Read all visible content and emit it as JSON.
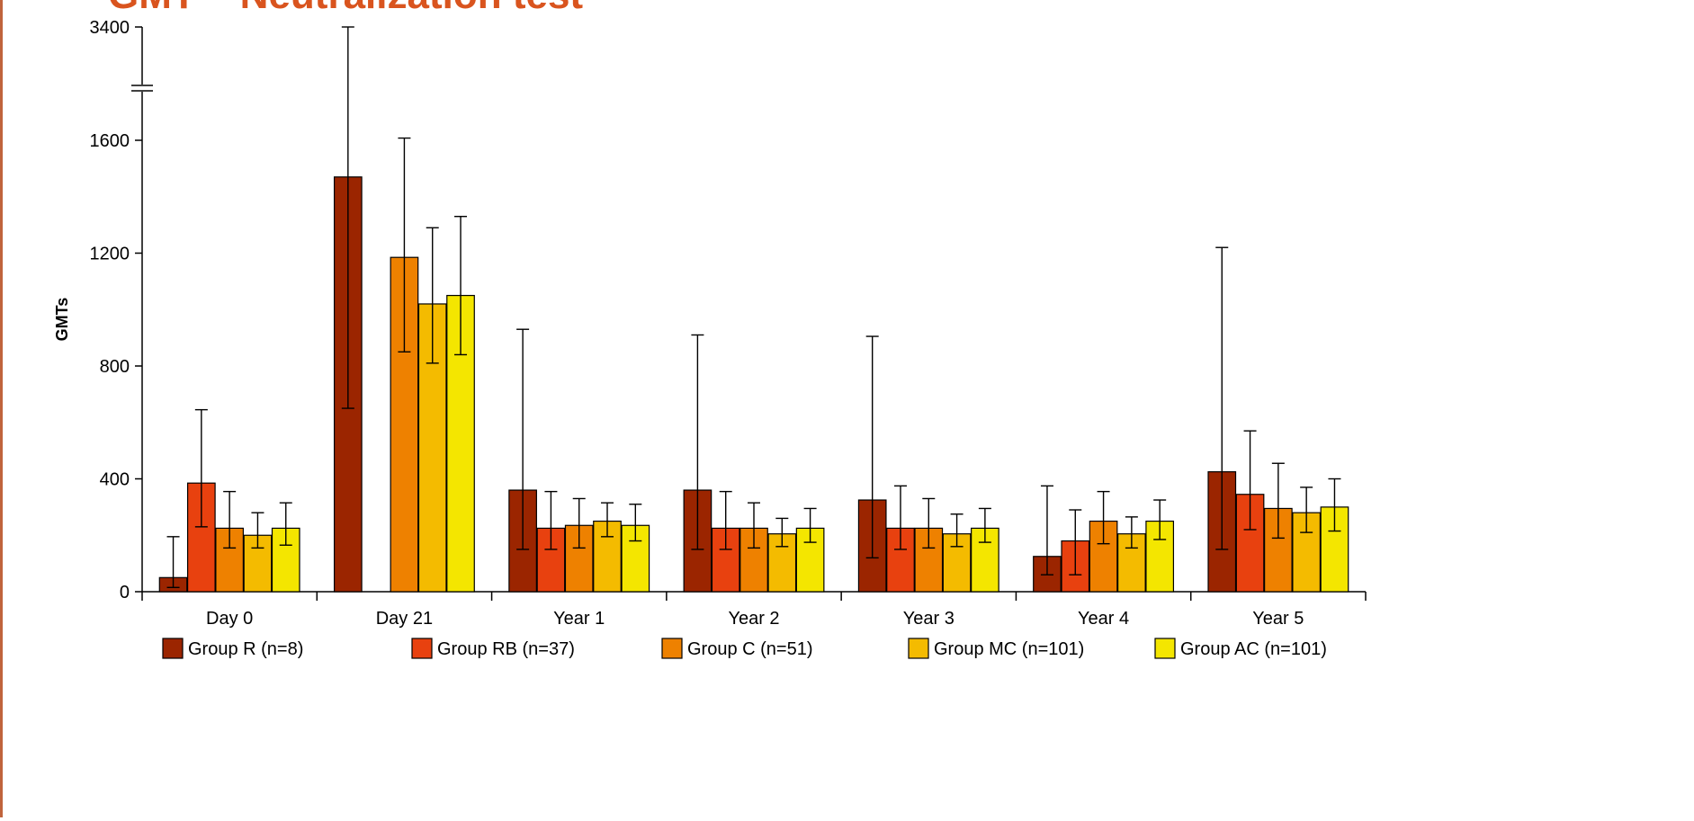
{
  "header": {
    "title_fragment": "GMT – Neutralization test"
  },
  "chart_data": {
    "type": "bar",
    "ylabel": "GMTs",
    "xlabel": "",
    "y_ticks": [
      "0",
      "400",
      "800",
      "1200",
      "1600",
      "3400"
    ],
    "y_axis_break": "between 1600 and 3400",
    "categories": [
      "Day 0",
      "Day 21",
      "Year 1",
      "Year 2",
      "Year 3",
      "Year 4",
      "Year 5"
    ],
    "error_bars": true,
    "legend_position": "bottom",
    "series": [
      {
        "name": "Group R (n=8)",
        "color": "#9b2500",
        "values": [
          50,
          1470,
          360,
          360,
          325,
          125,
          425
        ],
        "err_low": [
          15,
          650,
          150,
          150,
          120,
          60,
          150
        ],
        "err_high": [
          195,
          3400,
          930,
          910,
          905,
          375,
          1220
        ]
      },
      {
        "name": "Group RB (n=37)",
        "color": "#e8410f",
        "values": [
          385,
          null,
          225,
          225,
          225,
          180,
          345
        ],
        "err_low": [
          230,
          null,
          150,
          150,
          150,
          60,
          220
        ],
        "err_high": [
          645,
          null,
          355,
          355,
          375,
          290,
          570
        ]
      },
      {
        "name": "Group C (n=51)",
        "color": "#ee8100",
        "values": [
          225,
          1185,
          235,
          225,
          225,
          250,
          295
        ],
        "err_low": [
          155,
          850,
          155,
          155,
          155,
          170,
          190
        ],
        "err_high": [
          355,
          1635,
          330,
          315,
          330,
          355,
          455
        ]
      },
      {
        "name": "Group MC (n=101)",
        "color": "#f4bb00",
        "values": [
          200,
          1020,
          250,
          205,
          205,
          205,
          280
        ],
        "err_low": [
          155,
          810,
          195,
          160,
          160,
          155,
          210
        ],
        "err_high": [
          280,
          1290,
          315,
          260,
          275,
          265,
          370
        ]
      },
      {
        "name": "Group AC (n=101)",
        "color": "#f4e600",
        "values": [
          225,
          1050,
          235,
          225,
          225,
          250,
          300
        ],
        "err_low": [
          165,
          840,
          180,
          175,
          175,
          185,
          215
        ],
        "err_high": [
          315,
          1330,
          310,
          295,
          295,
          325,
          400
        ]
      }
    ]
  }
}
